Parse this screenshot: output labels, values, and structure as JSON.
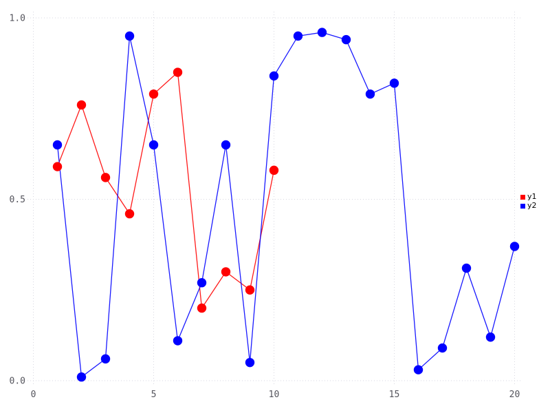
{
  "chart_data": {
    "type": "line",
    "title": "",
    "xlabel": "",
    "ylabel": "",
    "xlim": [
      0,
      20
    ],
    "ylim": [
      0.0,
      1.0
    ],
    "grid": true,
    "grid_style": "dotted",
    "x_ticks": {
      "values": [
        0,
        5,
        10,
        15,
        20
      ],
      "labels": [
        "0",
        "5",
        "10",
        "15",
        "20"
      ]
    },
    "y_ticks": {
      "values": [
        0.0,
        0.5,
        1.0
      ],
      "labels": [
        "0.0",
        "0.5",
        "1.0"
      ]
    },
    "legend": {
      "position": "right",
      "items": [
        {
          "label": "y1",
          "color": "#ff0000"
        },
        {
          "label": "y2",
          "color": "#0000ff"
        }
      ]
    },
    "series": [
      {
        "name": "y1",
        "color": "#ff0000",
        "marker": "circle",
        "x": [
          1,
          2,
          3,
          4,
          5,
          6,
          7,
          8,
          9,
          10
        ],
        "y": [
          0.59,
          0.76,
          0.56,
          0.46,
          0.79,
          0.85,
          0.2,
          0.3,
          0.25,
          0.58
        ]
      },
      {
        "name": "y2",
        "color": "#0000ff",
        "marker": "circle",
        "x": [
          1,
          2,
          3,
          4,
          5,
          6,
          7,
          8,
          9,
          10,
          11,
          12,
          13,
          14,
          15,
          16,
          17,
          18,
          19,
          20
        ],
        "y": [
          0.65,
          0.01,
          0.06,
          0.95,
          0.65,
          0.11,
          0.27,
          0.65,
          0.05,
          0.84,
          0.95,
          0.96,
          0.94,
          0.79,
          0.82,
          0.03,
          0.09,
          0.31,
          0.12,
          0.37
        ]
      }
    ]
  }
}
